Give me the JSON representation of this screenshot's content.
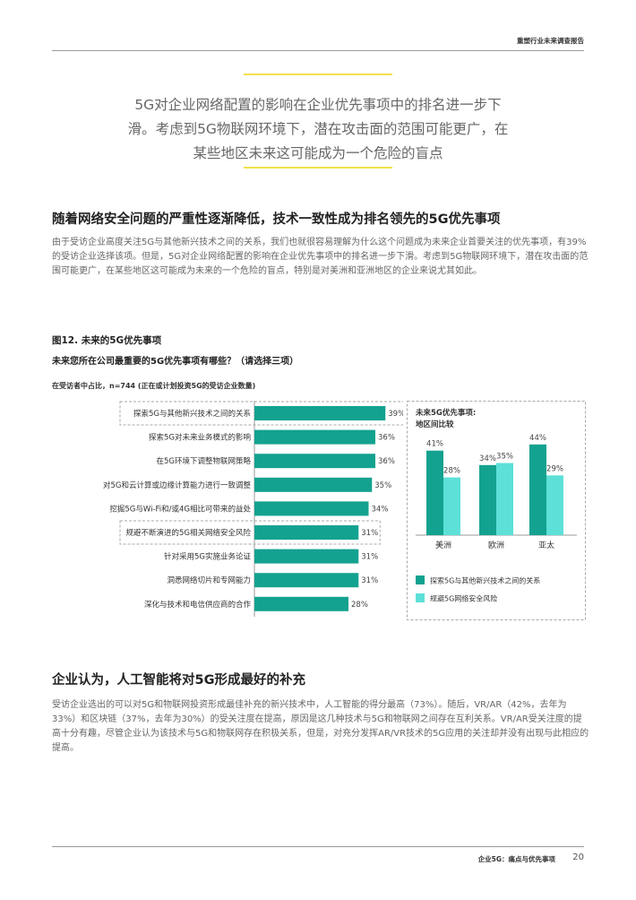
{
  "header": {
    "report_title": "重塑行业未来调查报告"
  },
  "pull_quote": {
    "lines": [
      "5G对企业网络配置的影响在企业优先事项中的排名进一步下",
      "滑。考虑到5G物联网环境下，潜在攻击面的范围可能更广，在",
      "某些地区未来这可能成为一个危险的盲点"
    ]
  },
  "section1": {
    "heading": "随着网络安全问题的严重性逐渐降低，技术一致性成为排名领先的5G优先事项",
    "body": "由于受访企业高度关注5G与其他新兴技术之间的关系，我们也就很容易理解为什么这个问题成为未来企业首要关注的优先事项，有39%的受访企业选择该项。但是，5G对企业网络配置的影响在企业优先事项中的排名进一步下滑。考虑到5G物联网环境下，潜在攻击面的范围可能更广，在某些地区这可能成为未来的一个危险的盲点，特别是对美洲和亚洲地区的企业来说尤其如此。"
  },
  "figure": {
    "title": "图12. 未来的5G优先事项",
    "question": "未来您所在公司最重要的5G优先事项有哪些？（请选择三项）",
    "basis": "在受访者中占比，n=744 (正在或计划投资5G的受访企业数量)"
  },
  "chart_data": [
    {
      "type": "bar",
      "orientation": "horizontal",
      "categories": [
        "探索5G与其他新兴技术之间的关系",
        "探索5G对未来业务模式的影响",
        "在5G环境下调整物联网策略",
        "对5G和云计算或边缘计算能力进行一致调整",
        "挖掘5G与Wi-Fi和/或4G相比可带来的益处",
        "规避不断演进的5G相关网络安全风险",
        "针对采用5G实施业务论证",
        "洞悉网络切片和专网能力",
        "深化与技术和电信供应商的合作"
      ],
      "values": [
        39,
        36,
        36,
        35,
        34,
        31,
        31,
        31,
        28
      ],
      "value_labels": [
        "39%",
        "36%",
        "36%",
        "35%",
        "34%",
        "31%",
        "31%",
        "31%",
        "28%"
      ],
      "highlighted": [
        0,
        5
      ],
      "bar_color": "#13a28f"
    },
    {
      "type": "bar",
      "title": "未来5G优先事项:",
      "subtitle": "地区间比较",
      "categories": [
        "美洲",
        "欧洲",
        "亚太"
      ],
      "series": [
        {
          "name": "探索5G与其他新兴技术之间的关系",
          "values": [
            41,
            34,
            44
          ],
          "value_labels": [
            "41%",
            "34%",
            "44%"
          ],
          "color": "#13a28f"
        },
        {
          "name": "规避5G网络安全风险",
          "values": [
            28,
            35,
            29
          ],
          "value_labels": [
            "28%",
            "35%",
            "29%"
          ],
          "color": "#5de0d8"
        }
      ],
      "ylim": [
        0,
        50
      ],
      "legend": "bottom"
    }
  ],
  "section2": {
    "heading": "企业认为，人工智能将对5G形成最好的补充",
    "body": "受访企业选出的可以对5G和物联网投资形成最佳补充的新兴技术中，人工智能的得分最高（73%）。随后，VR/AR（42%，去年为33%）和区块链（37%，去年为30%）的受关注度在提高，原因是这几种技术与5G和物联网之间存在互利关系。VR/AR受关注度的提高十分有趣，尽管企业认为该技术与5G和物联网存在积极关系，但是，对充分发挥AR/VR技术的5G应用的关注却并没有出现与此相应的提高。"
  },
  "footer": {
    "section_title": "企业5G：痛点与优先事项",
    "page_number": "20"
  }
}
